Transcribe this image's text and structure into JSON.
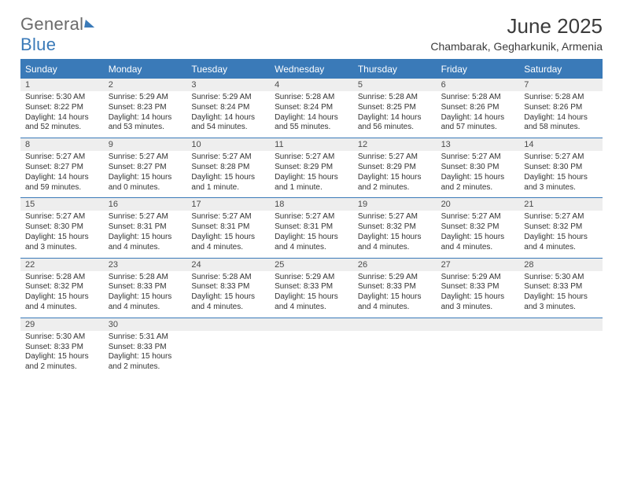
{
  "logo": {
    "text1": "General",
    "text2": "Blue"
  },
  "title": "June 2025",
  "location": "Chambarak, Gegharkunik, Armenia",
  "colors": {
    "brand_blue": "#3a7ab8",
    "header_text": "#ffffff",
    "daynum_bg": "#eeeeee",
    "body_text": "#333333",
    "logo_gray": "#6b6b6b",
    "page_bg": "#ffffff"
  },
  "weekdays": [
    "Sunday",
    "Monday",
    "Tuesday",
    "Wednesday",
    "Thursday",
    "Friday",
    "Saturday"
  ],
  "days": [
    {
      "n": "1",
      "sr": "5:30 AM",
      "ss": "8:22 PM",
      "d1": "Daylight: 14 hours",
      "d2": "and 52 minutes."
    },
    {
      "n": "2",
      "sr": "5:29 AM",
      "ss": "8:23 PM",
      "d1": "Daylight: 14 hours",
      "d2": "and 53 minutes."
    },
    {
      "n": "3",
      "sr": "5:29 AM",
      "ss": "8:24 PM",
      "d1": "Daylight: 14 hours",
      "d2": "and 54 minutes."
    },
    {
      "n": "4",
      "sr": "5:28 AM",
      "ss": "8:24 PM",
      "d1": "Daylight: 14 hours",
      "d2": "and 55 minutes."
    },
    {
      "n": "5",
      "sr": "5:28 AM",
      "ss": "8:25 PM",
      "d1": "Daylight: 14 hours",
      "d2": "and 56 minutes."
    },
    {
      "n": "6",
      "sr": "5:28 AM",
      "ss": "8:26 PM",
      "d1": "Daylight: 14 hours",
      "d2": "and 57 minutes."
    },
    {
      "n": "7",
      "sr": "5:28 AM",
      "ss": "8:26 PM",
      "d1": "Daylight: 14 hours",
      "d2": "and 58 minutes."
    },
    {
      "n": "8",
      "sr": "5:27 AM",
      "ss": "8:27 PM",
      "d1": "Daylight: 14 hours",
      "d2": "and 59 minutes."
    },
    {
      "n": "9",
      "sr": "5:27 AM",
      "ss": "8:27 PM",
      "d1": "Daylight: 15 hours",
      "d2": "and 0 minutes."
    },
    {
      "n": "10",
      "sr": "5:27 AM",
      "ss": "8:28 PM",
      "d1": "Daylight: 15 hours",
      "d2": "and 1 minute."
    },
    {
      "n": "11",
      "sr": "5:27 AM",
      "ss": "8:29 PM",
      "d1": "Daylight: 15 hours",
      "d2": "and 1 minute."
    },
    {
      "n": "12",
      "sr": "5:27 AM",
      "ss": "8:29 PM",
      "d1": "Daylight: 15 hours",
      "d2": "and 2 minutes."
    },
    {
      "n": "13",
      "sr": "5:27 AM",
      "ss": "8:30 PM",
      "d1": "Daylight: 15 hours",
      "d2": "and 2 minutes."
    },
    {
      "n": "14",
      "sr": "5:27 AM",
      "ss": "8:30 PM",
      "d1": "Daylight: 15 hours",
      "d2": "and 3 minutes."
    },
    {
      "n": "15",
      "sr": "5:27 AM",
      "ss": "8:30 PM",
      "d1": "Daylight: 15 hours",
      "d2": "and 3 minutes."
    },
    {
      "n": "16",
      "sr": "5:27 AM",
      "ss": "8:31 PM",
      "d1": "Daylight: 15 hours",
      "d2": "and 4 minutes."
    },
    {
      "n": "17",
      "sr": "5:27 AM",
      "ss": "8:31 PM",
      "d1": "Daylight: 15 hours",
      "d2": "and 4 minutes."
    },
    {
      "n": "18",
      "sr": "5:27 AM",
      "ss": "8:31 PM",
      "d1": "Daylight: 15 hours",
      "d2": "and 4 minutes."
    },
    {
      "n": "19",
      "sr": "5:27 AM",
      "ss": "8:32 PM",
      "d1": "Daylight: 15 hours",
      "d2": "and 4 minutes."
    },
    {
      "n": "20",
      "sr": "5:27 AM",
      "ss": "8:32 PM",
      "d1": "Daylight: 15 hours",
      "d2": "and 4 minutes."
    },
    {
      "n": "21",
      "sr": "5:27 AM",
      "ss": "8:32 PM",
      "d1": "Daylight: 15 hours",
      "d2": "and 4 minutes."
    },
    {
      "n": "22",
      "sr": "5:28 AM",
      "ss": "8:32 PM",
      "d1": "Daylight: 15 hours",
      "d2": "and 4 minutes."
    },
    {
      "n": "23",
      "sr": "5:28 AM",
      "ss": "8:33 PM",
      "d1": "Daylight: 15 hours",
      "d2": "and 4 minutes."
    },
    {
      "n": "24",
      "sr": "5:28 AM",
      "ss": "8:33 PM",
      "d1": "Daylight: 15 hours",
      "d2": "and 4 minutes."
    },
    {
      "n": "25",
      "sr": "5:29 AM",
      "ss": "8:33 PM",
      "d1": "Daylight: 15 hours",
      "d2": "and 4 minutes."
    },
    {
      "n": "26",
      "sr": "5:29 AM",
      "ss": "8:33 PM",
      "d1": "Daylight: 15 hours",
      "d2": "and 4 minutes."
    },
    {
      "n": "27",
      "sr": "5:29 AM",
      "ss": "8:33 PM",
      "d1": "Daylight: 15 hours",
      "d2": "and 3 minutes."
    },
    {
      "n": "28",
      "sr": "5:30 AM",
      "ss": "8:33 PM",
      "d1": "Daylight: 15 hours",
      "d2": "and 3 minutes."
    },
    {
      "n": "29",
      "sr": "5:30 AM",
      "ss": "8:33 PM",
      "d1": "Daylight: 15 hours",
      "d2": "and 2 minutes."
    },
    {
      "n": "30",
      "sr": "5:31 AM",
      "ss": "8:33 PM",
      "d1": "Daylight: 15 hours",
      "d2": "and 2 minutes."
    }
  ],
  "labels": {
    "sunrise_prefix": "Sunrise: ",
    "sunset_prefix": "Sunset: "
  },
  "layout": {
    "columns": 7,
    "start_weekday": 0,
    "trailing_blank_cells": 5
  }
}
